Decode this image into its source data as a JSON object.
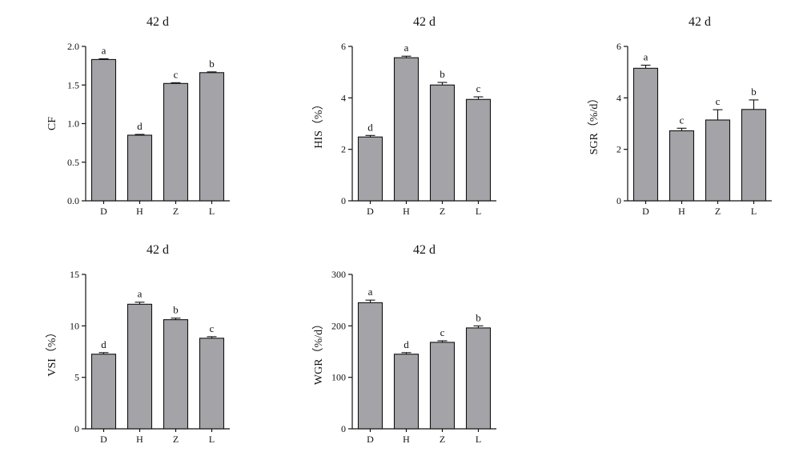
{
  "chart_data": [
    {
      "type": "bar",
      "title": "42 d",
      "ylabel": "CF",
      "categories": [
        "D",
        "H",
        "Z",
        "L"
      ],
      "values": [
        1.83,
        0.85,
        1.52,
        1.66
      ],
      "errors": [
        0.01,
        0.01,
        0.01,
        0.01
      ],
      "letters": [
        "a",
        "d",
        "c",
        "b"
      ],
      "ylim": [
        0,
        2.0
      ],
      "yticks": [
        "0.0",
        "0.5",
        "1.0",
        "1.5",
        "2.0"
      ]
    },
    {
      "type": "bar",
      "title": "42 d",
      "ylabel": "HIS（%）",
      "categories": [
        "D",
        "H",
        "Z",
        "L"
      ],
      "values": [
        2.48,
        5.56,
        4.5,
        3.94
      ],
      "errors": [
        0.06,
        0.06,
        0.1,
        0.1
      ],
      "letters": [
        "d",
        "a",
        "b",
        "c"
      ],
      "ylim": [
        0,
        6
      ],
      "yticks": [
        "0",
        "2",
        "4",
        "6"
      ]
    },
    {
      "type": "bar",
      "title": "42 d",
      "ylabel": "SGR（%/d）",
      "categories": [
        "D",
        "H",
        "Z",
        "L"
      ],
      "values": [
        5.15,
        2.72,
        3.14,
        3.55
      ],
      "errors": [
        0.12,
        0.1,
        0.4,
        0.37
      ],
      "letters": [
        "a",
        "c",
        "c",
        "b"
      ],
      "ylim": [
        0,
        6
      ],
      "yticks": [
        "0",
        "2",
        "4",
        "6"
      ]
    },
    {
      "type": "bar",
      "title": "42 d",
      "ylabel": "VSI（%）",
      "categories": [
        "D",
        "H",
        "Z",
        "L"
      ],
      "values": [
        7.25,
        12.1,
        10.6,
        8.8
      ],
      "errors": [
        0.15,
        0.2,
        0.15,
        0.15
      ],
      "letters": [
        "d",
        "a",
        "b",
        "c"
      ],
      "ylim": [
        0,
        15
      ],
      "yticks": [
        "0",
        "5",
        "10",
        "15"
      ]
    },
    {
      "type": "bar",
      "title": "42 d",
      "ylabel": "WGR（%/d）",
      "categories": [
        "D",
        "H",
        "Z",
        "L"
      ],
      "values": [
        245,
        145,
        168,
        196
      ],
      "errors": [
        5,
        3,
        3,
        4
      ],
      "letters": [
        "a",
        "d",
        "c",
        "b"
      ],
      "ylim": [
        0,
        300
      ],
      "yticks": [
        "0",
        "100",
        "200",
        "300"
      ]
    }
  ]
}
